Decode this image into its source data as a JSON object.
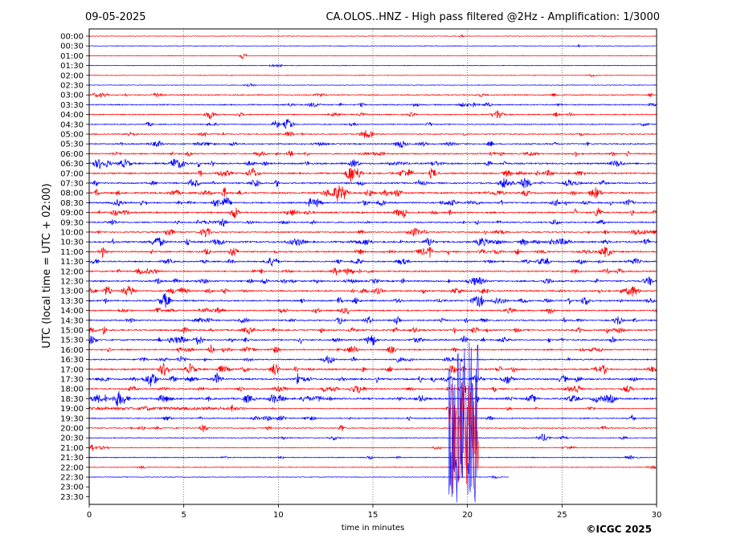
{
  "header": {
    "date": "09-05-2025",
    "title": "CA.OLOS..HNZ - High pass filtered @2Hz - Amplification: 1/3000"
  },
  "footer": {
    "copyright": "©ICGC 2025"
  },
  "chart_data": {
    "type": "line",
    "title": "CA.OLOS..HNZ - High pass filtered @2Hz - Amplification: 1/3000",
    "xlabel": "time in minutes",
    "ylabel": "UTC (local time = UTC + 02:00)",
    "xlim": [
      0,
      30
    ],
    "xticks": [
      0,
      5,
      10,
      15,
      20,
      25,
      30
    ],
    "ytick_labels": [
      "00:00",
      "00:30",
      "01:00",
      "01:30",
      "02:00",
      "02:30",
      "03:00",
      "03:30",
      "04:00",
      "04:30",
      "05:00",
      "05:30",
      "06:00",
      "06:30",
      "07:00",
      "07:30",
      "08:00",
      "08:30",
      "09:00",
      "09:30",
      "10:00",
      "10:30",
      "11:00",
      "11:30",
      "12:00",
      "12:30",
      "13:00",
      "13:30",
      "14:00",
      "14:30",
      "15:00",
      "15:30",
      "16:00",
      "16:30",
      "17:00",
      "17:30",
      "18:00",
      "18:30",
      "19:00",
      "19:30",
      "20:00",
      "20:30",
      "21:00",
      "21:30",
      "22:00",
      "22:30",
      "23:00",
      "23:30"
    ],
    "series_colors": [
      "#ff0000",
      "#0000ff"
    ],
    "vertical_gridlines_minutes": [
      5,
      10,
      15,
      20,
      25
    ],
    "row_activity": [
      0.02,
      0.03,
      0.02,
      0.02,
      0.02,
      0.02,
      0.35,
      0.45,
      0.4,
      0.3,
      0.4,
      0.55,
      0.6,
      0.85,
      0.8,
      0.75,
      0.85,
      0.8,
      0.75,
      0.6,
      0.5,
      0.9,
      0.75,
      0.6,
      0.65,
      0.75,
      0.75,
      0.75,
      0.6,
      0.65,
      0.7,
      0.75,
      0.6,
      0.5,
      0.85,
      0.9,
      0.75,
      1.0,
      0.25,
      0.4,
      0.35,
      0.2,
      0.15,
      0.2,
      0.12,
      0.05,
      0,
      0
    ],
    "earthquake": {
      "start_minute": 19.0,
      "end_minute": 20.6,
      "row_start": "19:00",
      "row_end": "23:30"
    },
    "recording_end": {
      "row": "22:30",
      "minute": 22.2
    }
  }
}
